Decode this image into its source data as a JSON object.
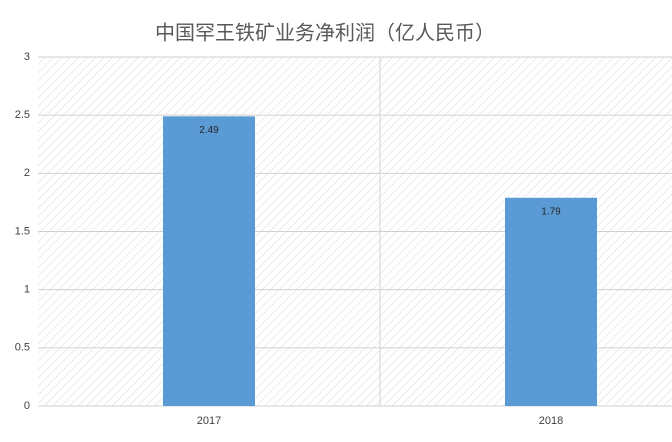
{
  "chart_data": {
    "type": "bar",
    "title": "中国罕王铁矿业务净利润（亿人民币）",
    "categories": [
      "2017",
      "2018"
    ],
    "values": [
      2.49,
      1.79
    ],
    "color": "#5b9bd5",
    "ylim": [
      0,
      3
    ],
    "yticks": [
      0,
      0.5,
      1,
      1.5,
      2,
      2.5,
      3
    ],
    "grid": true
  }
}
